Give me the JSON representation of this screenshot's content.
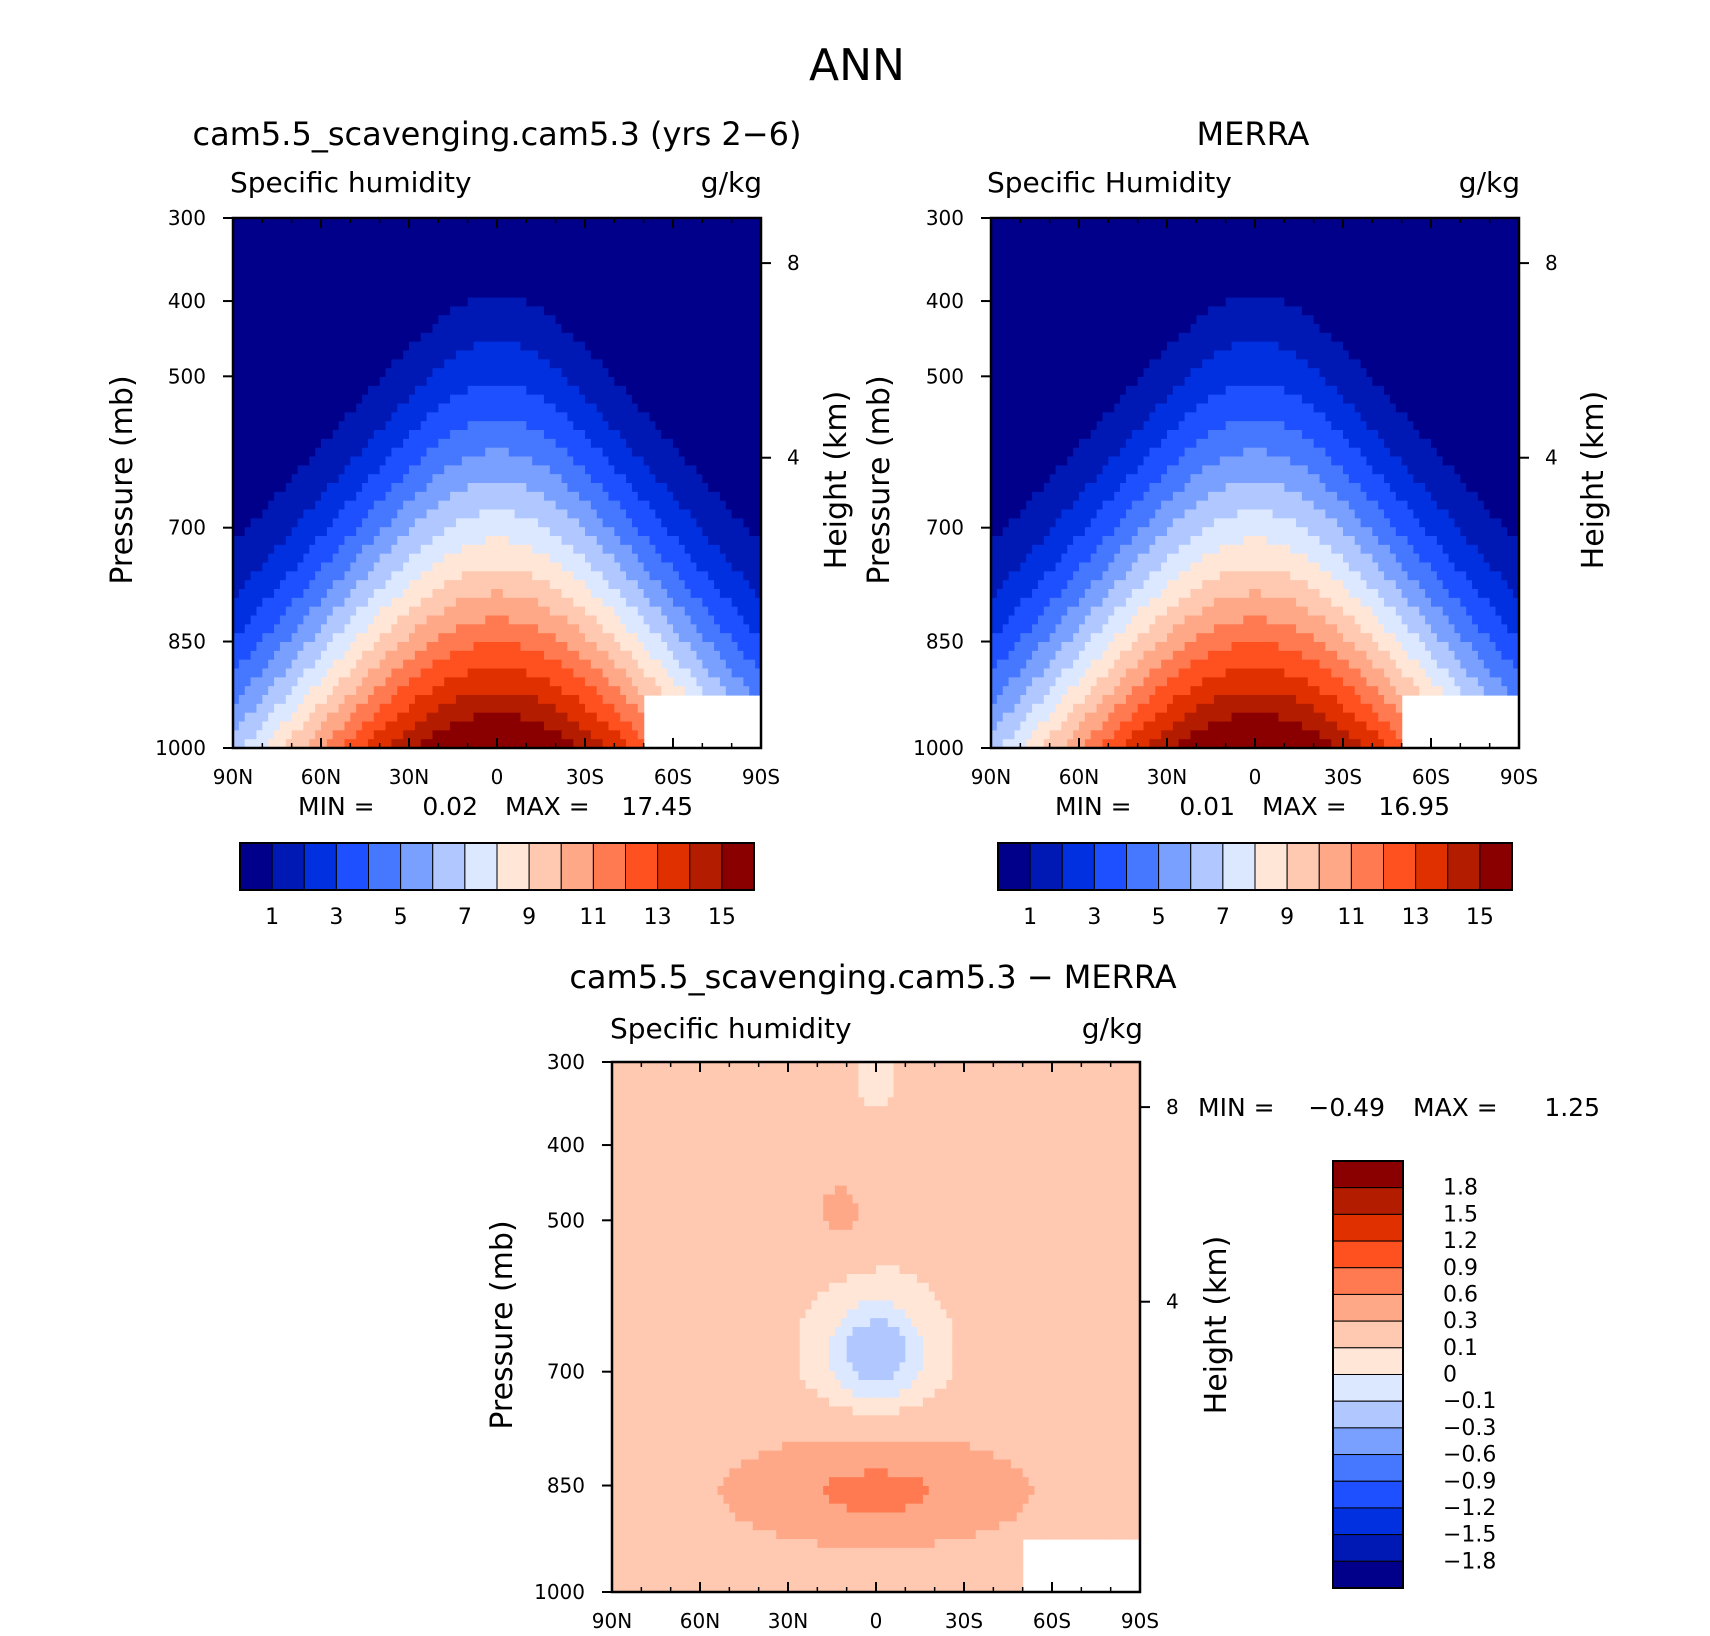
{
  "figure": {
    "title": "ANN"
  },
  "chart_data": [
    {
      "type": "heatmap",
      "title": "cam5.5_scavenging.cam5.3 (yrs 2−6)",
      "left_label": "Specific humidity",
      "right_label": "g/kg",
      "ylabel": "Pressure (mb)",
      "ylabel_right": "Height (km)",
      "x_ticks": [
        "90N",
        "60N",
        "30N",
        "0",
        "30S",
        "60S",
        "90S"
      ],
      "y_ticks": [
        "300",
        "400",
        "500",
        "700",
        "850",
        "1000"
      ],
      "y_right_ticks": [
        "8",
        "4"
      ],
      "min_label": "MIN =",
      "min_value": "0.02",
      "max_label": "MAX =",
      "max_value": "17.45",
      "colorbar_labels": [
        "1",
        "3",
        "5",
        "7",
        "9",
        "11",
        "13",
        "15"
      ],
      "colors": [
        "#00008a",
        "#0018b4",
        "#0030e0",
        "#1e50ff",
        "#4678ff",
        "#7aa0ff",
        "#b0c8ff",
        "#dce8ff",
        "#ffe6d6",
        "#ffc8b0",
        "#ffa888",
        "#ff7a50",
        "#ff5020",
        "#e03000",
        "#b41c00",
        "#8a0000"
      ]
    },
    {
      "type": "heatmap",
      "title": "MERRA",
      "left_label": "Specific Humidity",
      "right_label": "g/kg",
      "ylabel": "Pressure (mb)",
      "ylabel_right": "Height (km)",
      "x_ticks": [
        "90N",
        "60N",
        "30N",
        "0",
        "30S",
        "60S",
        "90S"
      ],
      "y_ticks": [
        "300",
        "400",
        "500",
        "700",
        "850",
        "1000"
      ],
      "y_right_ticks": [
        "8",
        "4"
      ],
      "min_label": "MIN =",
      "min_value": "0.01",
      "max_label": "MAX =",
      "max_value": "16.95",
      "colorbar_labels": [
        "1",
        "3",
        "5",
        "7",
        "9",
        "11",
        "13",
        "15"
      ],
      "colors": [
        "#00008a",
        "#0018b4",
        "#0030e0",
        "#1e50ff",
        "#4678ff",
        "#7aa0ff",
        "#b0c8ff",
        "#dce8ff",
        "#ffe6d6",
        "#ffc8b0",
        "#ffa888",
        "#ff7a50",
        "#ff5020",
        "#e03000",
        "#b41c00",
        "#8a0000"
      ]
    },
    {
      "type": "heatmap",
      "title": "cam5.5_scavenging.cam5.3 − MERRA",
      "left_label": "Specific humidity",
      "right_label": "g/kg",
      "ylabel": "Pressure (mb)",
      "ylabel_right": "Height (km)",
      "x_ticks": [
        "90N",
        "60N",
        "30N",
        "0",
        "30S",
        "60S",
        "90S"
      ],
      "y_ticks": [
        "300",
        "400",
        "500",
        "700",
        "850",
        "1000"
      ],
      "y_right_ticks": [
        "8",
        "4"
      ],
      "min_label": "MIN =",
      "min_value": "−0.49",
      "max_label": "MAX =",
      "max_value": "1.25",
      "colorbar_labels": [
        "1.8",
        "1.5",
        "1.2",
        "0.9",
        "0.6",
        "0.3",
        "0.1",
        "0",
        "−0.1",
        "−0.3",
        "−0.6",
        "−0.9",
        "−1.2",
        "−1.5",
        "−1.8"
      ],
      "colors": [
        "#8a0000",
        "#b41c00",
        "#e03000",
        "#ff5020",
        "#ff7a50",
        "#ffa888",
        "#ffc8b0",
        "#ffe6d6",
        "#dce8ff",
        "#b0c8ff",
        "#7aa0ff",
        "#4678ff",
        "#1e50ff",
        "#0030e0",
        "#0018b4",
        "#00008a"
      ]
    }
  ]
}
